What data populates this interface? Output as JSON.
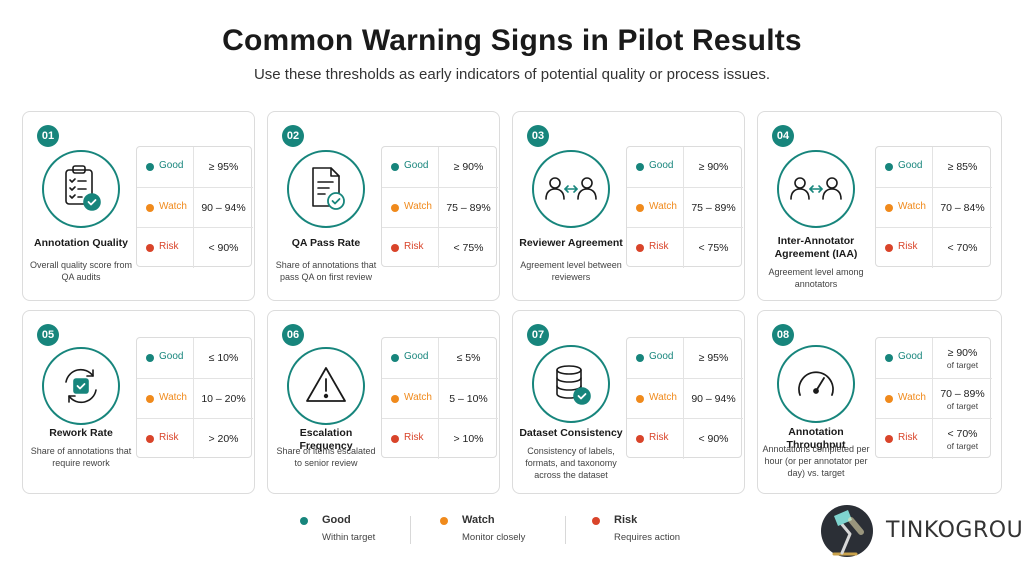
{
  "header": {
    "title": "Common Warning Signs in Pilot Results",
    "subtitle": "Use these thresholds as early indicators of potential quality or process issues."
  },
  "colors": {
    "good": "#17857c",
    "watch": "#f08a1c",
    "risk": "#d9442a",
    "accent": "#17857c"
  },
  "levels": {
    "good": "Good",
    "watch": "Watch",
    "risk": "Risk"
  },
  "metrics": [
    {
      "num": "01",
      "icon": "clipboard-checklist-icon",
      "label": "Annotation Quality",
      "desc": "Overall quality score from QA audits",
      "good": "≥ 95%",
      "good_sub": "",
      "watch": "90 – 94%",
      "watch_sub": "",
      "risk": "< 90%",
      "risk_sub": ""
    },
    {
      "num": "02",
      "icon": "document-check-icon",
      "label": "QA Pass Rate",
      "desc": "Share of annotations that pass QA on first review",
      "good": "≥ 90%",
      "good_sub": "",
      "watch": "75 – 89%",
      "watch_sub": "",
      "risk": "< 75%",
      "risk_sub": ""
    },
    {
      "num": "03",
      "icon": "reviewers-arrows-icon",
      "label": "Reviewer Agreement",
      "desc": "Agreement level between reviewers",
      "good": "≥ 90%",
      "good_sub": "",
      "watch": "75 – 89%",
      "watch_sub": "",
      "risk": "< 75%",
      "risk_sub": ""
    },
    {
      "num": "04",
      "icon": "annotators-arrows-icon",
      "label": "Inter-Annotator Agreement (IAA)",
      "desc": "Agreement level among annotators",
      "good": "≥ 85%",
      "good_sub": "",
      "watch": "70 – 84%",
      "watch_sub": "",
      "risk": "< 70%",
      "risk_sub": ""
    },
    {
      "num": "05",
      "icon": "rework-cycle-icon",
      "label": "Rework Rate",
      "desc": "Share of annotations that require rework",
      "good": "≤ 10%",
      "good_sub": "",
      "watch": "10 – 20%",
      "watch_sub": "",
      "risk": "> 20%",
      "risk_sub": ""
    },
    {
      "num": "06",
      "icon": "warning-triangle-icon",
      "label": "Escalation Frequency",
      "desc": "Share of items escalated to senior review",
      "good": "≤ 5%",
      "good_sub": "",
      "watch": "5 – 10%",
      "watch_sub": "",
      "risk": "> 10%",
      "risk_sub": ""
    },
    {
      "num": "07",
      "icon": "database-check-icon",
      "label": "Dataset Consistency",
      "desc": "Consistency of labels, formats, and taxonomy across the dataset",
      "good": "≥ 95%",
      "good_sub": "",
      "watch": "90 – 94%",
      "watch_sub": "",
      "risk": "< 90%",
      "risk_sub": ""
    },
    {
      "num": "08",
      "icon": "speedometer-icon",
      "label": "Annotation Throughput",
      "desc": "Annotations completed per hour (or per annotator per day) vs. target",
      "good": "≥ 90%",
      "good_sub": "of target",
      "watch": "70 – 89%",
      "watch_sub": "of target",
      "risk": "< 70%",
      "risk_sub": "of target"
    }
  ],
  "legend": [
    {
      "title": "Good",
      "desc": "Within target"
    },
    {
      "title": "Watch",
      "desc": "Monitor closely"
    },
    {
      "title": "Risk",
      "desc": "Requires action"
    }
  ],
  "brand": {
    "name": "TINKOGROUP",
    "logo_icon": "desk-lamp-icon"
  }
}
